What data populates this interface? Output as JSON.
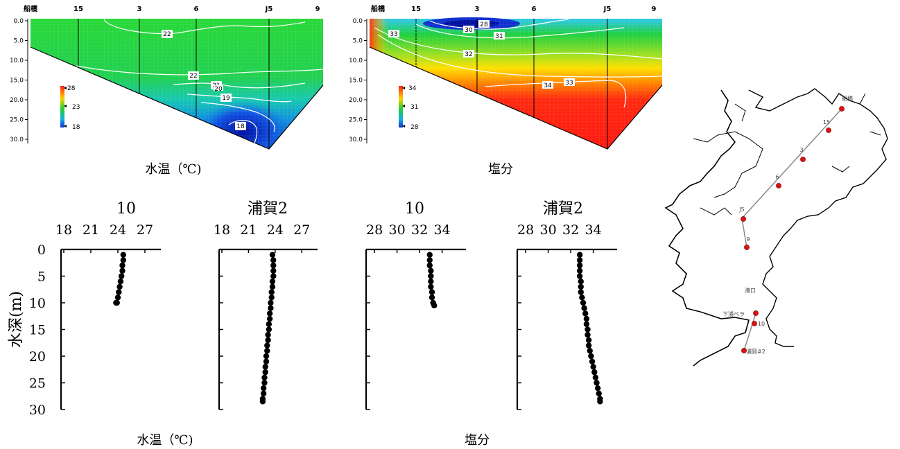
{
  "colors": {
    "cold": "#1030d0",
    "mid": "#20d020",
    "warm": "#ff2a10",
    "station": "#e01010",
    "contour": "#ffffff"
  },
  "chart_data": [
    {
      "type": "heatmap",
      "name": "temperature-section",
      "title": "水温（℃)",
      "stations": [
        "船橋",
        "15",
        "3",
        "6",
        "J5",
        "9"
      ],
      "depth_ticks": [
        "0.0",
        "5.0",
        "10.0",
        "15.0",
        "20.0",
        "25.0",
        "30.0"
      ],
      "ylim": [
        0,
        32
      ],
      "scale": {
        "max": "28",
        "mid": "23",
        "min": "18"
      },
      "contour_labels": [
        "22",
        "22",
        "21",
        "20",
        "19",
        "18"
      ]
    },
    {
      "type": "heatmap",
      "name": "salinity-section",
      "title": "塩分",
      "stations": [
        "船橋",
        "15",
        "3",
        "6",
        "J5",
        "9"
      ],
      "depth_ticks": [
        "0.0",
        "5.0",
        "10.0",
        "15.0",
        "20.0",
        "25.0",
        "30.0"
      ],
      "ylim": [
        0,
        32
      ],
      "scale": {
        "max": "34",
        "mid": "31",
        "min": "28"
      },
      "contour_labels": [
        "28",
        "30",
        "31",
        "33",
        "32",
        "34",
        "33"
      ]
    },
    {
      "type": "scatter",
      "name": "profile-temp-10",
      "title": "10",
      "xticks": [
        "18",
        "21",
        "24",
        "27"
      ],
      "xlim": [
        18,
        28
      ],
      "ylim": [
        0,
        30
      ],
      "x": [
        24.6,
        24.6,
        24.5,
        24.5,
        24.4,
        24.3,
        24.2,
        24.1,
        24.0,
        23.9,
        23.8
      ],
      "y": [
        1,
        2,
        3,
        4,
        5,
        6,
        7,
        8,
        9,
        10,
        10
      ]
    },
    {
      "type": "scatter",
      "name": "profile-temp-uraga2",
      "title": "浦賀2",
      "xticks": [
        "18",
        "21",
        "24",
        "27"
      ],
      "xlim": [
        18,
        28
      ],
      "ylim": [
        0,
        30
      ],
      "x": [
        23.7,
        23.8,
        23.8,
        23.8,
        23.8,
        23.7,
        23.7,
        23.6,
        23.6,
        23.5,
        23.5,
        23.4,
        23.4,
        23.3,
        23.3,
        23.2,
        23.2,
        23.1,
        23.1,
        23.0,
        23.0,
        22.9,
        22.9,
        22.8,
        22.8,
        22.7,
        22.7,
        22.6,
        22.6
      ],
      "y": [
        1,
        2,
        3,
        4,
        5,
        6,
        7,
        8,
        9,
        10,
        11,
        12,
        13,
        14,
        15,
        16,
        17,
        18,
        19,
        20,
        21,
        22,
        23,
        24,
        25,
        26,
        27,
        28,
        28.5
      ]
    },
    {
      "type": "scatter",
      "name": "profile-sal-10",
      "title": "10",
      "xticks": [
        "28",
        "30",
        "32",
        "34"
      ],
      "xlim": [
        27.5,
        35.5
      ],
      "ylim": [
        0,
        30
      ],
      "x": [
        32.9,
        32.9,
        32.9,
        33.0,
        33.0,
        33.0,
        33.0,
        33.1,
        33.1,
        33.2,
        33.3
      ],
      "y": [
        1,
        2,
        3,
        4,
        5,
        6,
        7,
        8,
        9,
        10,
        10.5
      ]
    },
    {
      "type": "scatter",
      "name": "profile-sal-uraga2",
      "title": "浦賀2",
      "xticks": [
        "28",
        "30",
        "32",
        "34"
      ],
      "xlim": [
        27.5,
        35.5
      ],
      "ylim": [
        0,
        30
      ],
      "x": [
        32.8,
        32.8,
        32.8,
        32.8,
        32.8,
        32.9,
        32.9,
        32.9,
        33.0,
        33.1,
        33.2,
        33.3,
        33.4,
        33.4,
        33.5,
        33.5,
        33.6,
        33.6,
        33.7,
        33.8,
        33.9,
        34.0,
        34.1,
        34.2,
        34.3,
        34.4,
        34.5,
        34.6,
        34.6
      ],
      "y": [
        1,
        2,
        3,
        4,
        5,
        6,
        7,
        8,
        9,
        10,
        11,
        12,
        13,
        14,
        15,
        16,
        17,
        18,
        19,
        20,
        21,
        22,
        23,
        24,
        25,
        26,
        27,
        28,
        28.5
      ]
    }
  ],
  "profiles_common": {
    "ylabel": "水深(m)",
    "yticks": [
      "0",
      "5",
      "10",
      "15",
      "20",
      "25",
      "30"
    ],
    "caption_temp": "水温（℃)",
    "caption_sal": "塩分"
  },
  "map": {
    "labels": [
      "船橋",
      "15",
      "3",
      "6",
      "J5",
      "9",
      "港口",
      "下浦ベラ",
      "10",
      "浦賀#2"
    ]
  }
}
